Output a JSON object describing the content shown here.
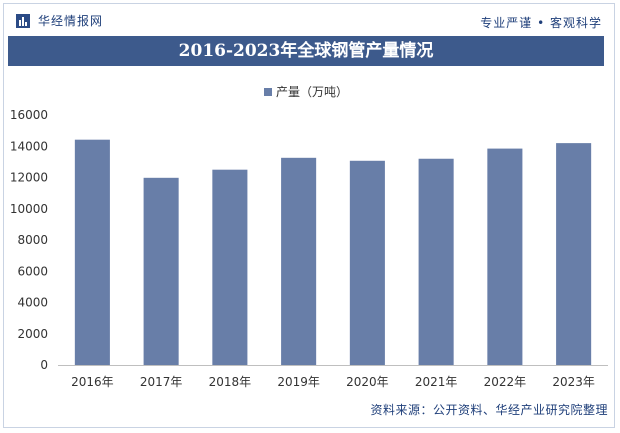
{
  "header": {
    "brand": "华经情报网",
    "tagline": "专业严谨 • 客观科学"
  },
  "chart_data": {
    "type": "bar",
    "title": "2016-2023年全球钢管产量情况",
    "categories": [
      "2016年",
      "2017年",
      "2018年",
      "2019年",
      "2020年",
      "2021年",
      "2022年",
      "2023年"
    ],
    "series": [
      {
        "name": "产量（万吨）",
        "values": [
          14420,
          11980,
          12500,
          13260,
          13070,
          13200,
          13850,
          14200
        ]
      }
    ],
    "ylim": [
      0,
      16000
    ],
    "yticks": [
      0,
      2000,
      4000,
      6000,
      8000,
      10000,
      12000,
      14000,
      16000
    ],
    "xlabel": "",
    "ylabel": "",
    "grid": false,
    "legend_position": "top",
    "bar_color": "#687ea8"
  },
  "footer": {
    "source": "资料来源：公开资料、华经产业研究院整理"
  },
  "colors": {
    "title_bar": "#3d5a8c",
    "brand_text": "#1f3f7a",
    "bar": "#687ea8"
  }
}
